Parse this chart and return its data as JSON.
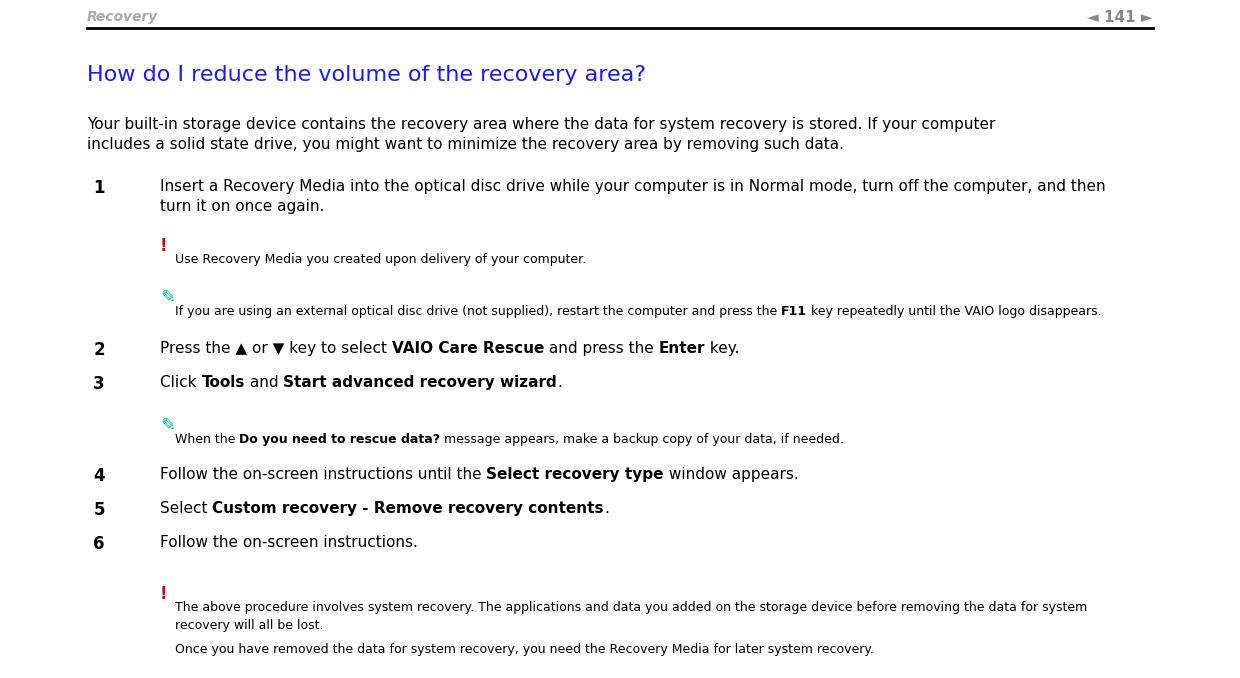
{
  "bg_color": "#ffffff",
  "header_text": "Recovery",
  "header_number": "141",
  "header_color": "#aaaaaa",
  "header_arrow_color": "#888888",
  "line_color": "#000000",
  "title": "How do I reduce the volume of the recovery area?",
  "title_color": "#1a1aff",
  "intro": "Your built-in storage device contains the recovery area where the data for system recovery is stored. If your computer\nincludes a solid state drive, you might want to minimize the recovery area by removing such data.",
  "intro_color": "#000000",
  "note1_symbol": "!",
  "note1_symbol_color": "#cc0000",
  "note1_text": "Use Recovery Media you created upon delivery of your computer.",
  "note2_symbol_color": "#00bbaa",
  "note2_text": "If you are using an external optical disc drive (not supplied), restart the computer and press the F11 key repeatedly until the VAIO logo disappears.",
  "note2_bold": "F11",
  "note3_symbol_color": "#00bbaa",
  "note3_pre": "When the ",
  "note3_bold": "Do you need to rescue data?",
  "note3_post": " message appears, make a backup copy of your data, if needed.",
  "warning1_symbol": "!",
  "warning1_symbol_color": "#cc0000",
  "warning1_text": "The above procedure involves system recovery. The applications and data you added on the storage device before removing the data for system\nrecovery will all be lost.",
  "warning2_text": "Once you have removed the data for system recovery, you need the Recovery Media for later system recovery."
}
